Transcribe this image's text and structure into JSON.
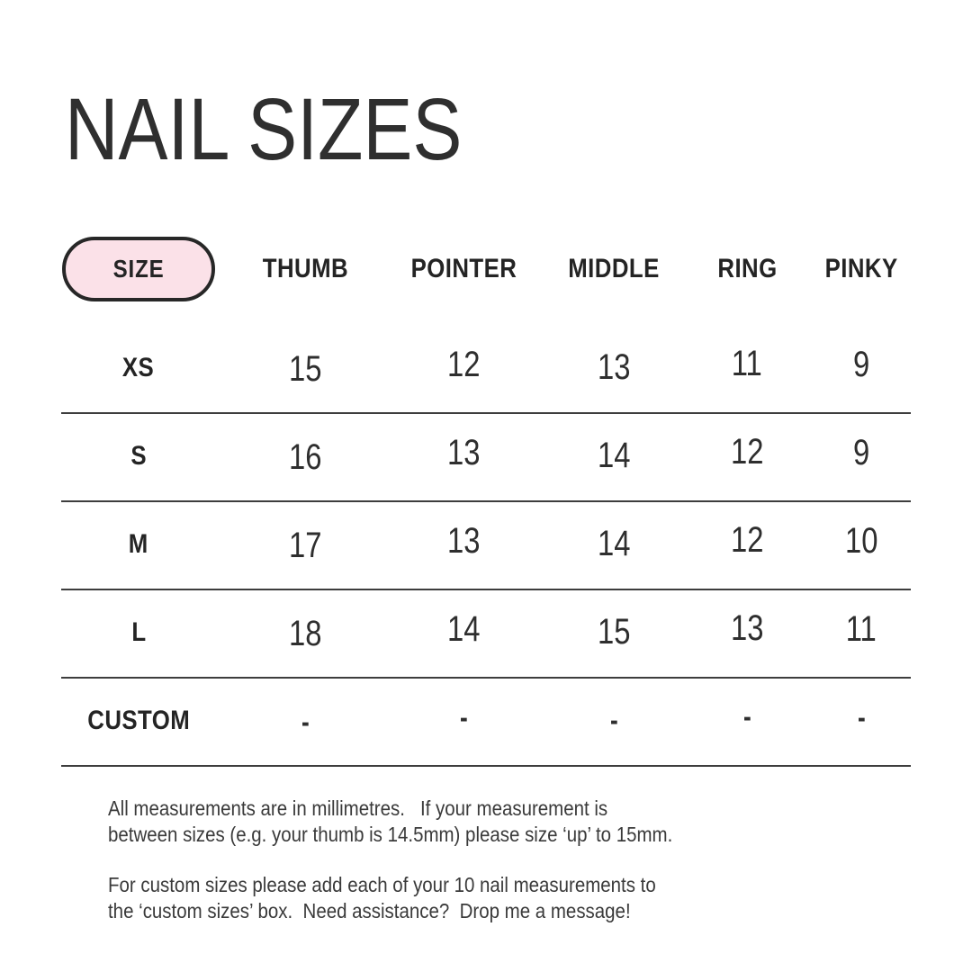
{
  "page": {
    "title": "NAIL SIZES"
  },
  "table": {
    "columns": [
      "SIZE",
      "THUMB",
      "POINTER",
      "MIDDLE",
      "RING",
      "PINKY"
    ],
    "rows": [
      {
        "label": "XS",
        "values": [
          "15",
          "12",
          "13",
          "11",
          "9"
        ]
      },
      {
        "label": "S",
        "values": [
          "16",
          "13",
          "14",
          "12",
          "9"
        ]
      },
      {
        "label": "M",
        "values": [
          "17",
          "13",
          "14",
          "12",
          "10"
        ]
      },
      {
        "label": "L",
        "values": [
          "18",
          "14",
          "15",
          "13",
          "11"
        ]
      },
      {
        "label": "CUSTOM",
        "values": [
          "-",
          "-",
          "-",
          "-",
          "-"
        ]
      }
    ]
  },
  "notes": {
    "p1": "All measurements are in millimetres.   If your measurement is\nbetween sizes (e.g. your thumb is 14.5mm) please size ‘up’ to 15mm.",
    "p2": "For custom sizes please add each of your 10 nail measurements to\nthe ‘custom sizes’ box.  Need assistance?  Drop me a message!"
  },
  "colors": {
    "accent_pink": "#fbe1e8",
    "pill_border": "#272727",
    "ink": "#2e2e2e",
    "line": "#3d3d3d",
    "background": "#ffffff"
  }
}
